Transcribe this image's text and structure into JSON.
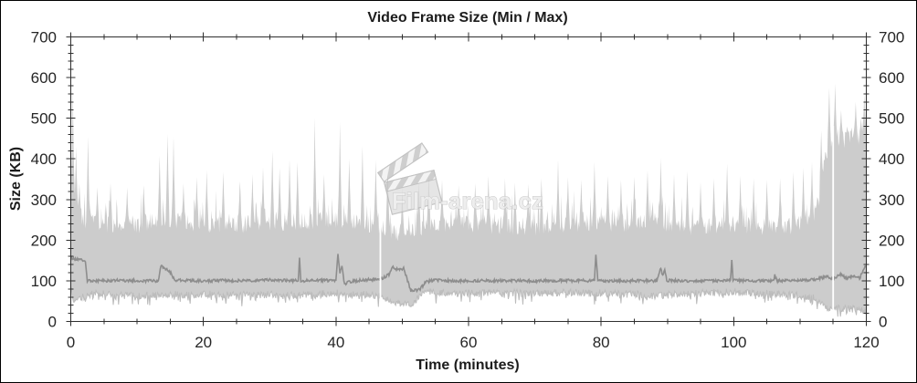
{
  "frame": {
    "background_color": "#ffffff",
    "border_color": "#000000"
  },
  "watermark": {
    "text": "Film-arena.cz",
    "icon": "clapperboard-icon",
    "color": "#c9c9c9"
  },
  "chart_data": {
    "type": "area",
    "title": "Video Frame Size (Min / Max)",
    "xlabel": "Time (minutes)",
    "ylabel": "Size (KB)",
    "xlim": [
      0,
      120
    ],
    "ylim": [
      0,
      700
    ],
    "x_major_ticks": [
      0,
      20,
      40,
      60,
      80,
      100,
      120
    ],
    "x_minor_step": 5,
    "y_major_ticks": [
      0,
      100,
      200,
      300,
      400,
      500,
      600,
      700
    ],
    "y_minor_step": 20,
    "grid": false,
    "legend_position": "none",
    "axis_color": "#2f2f2f",
    "text_color": "#1c1c1c",
    "band_color": "#cccccc",
    "min_edge_color": "#bcbcbc",
    "avg_color": "#8d8d8d",
    "sample_step": 0.1,
    "noise": {
      "seed": 20,
      "max_amp": 22,
      "max_spike_prob": 0.16,
      "max_spike_extra": 70,
      "min_amp": 9,
      "min_dip_prob": 0.12,
      "min_dip_extra": 22,
      "avg_amp": 3.5
    },
    "drops": [
      46.7,
      115.0
    ],
    "series": [
      {
        "name": "max",
        "role": "band-top",
        "keyframes": [
          [
            0,
            310
          ],
          [
            1,
            265
          ],
          [
            2,
            248
          ],
          [
            5,
            240
          ],
          [
            10,
            238
          ],
          [
            14,
            252
          ],
          [
            16,
            248
          ],
          [
            20,
            240
          ],
          [
            25,
            238
          ],
          [
            28,
            242
          ],
          [
            30,
            246
          ],
          [
            33,
            244
          ],
          [
            35,
            246
          ],
          [
            37,
            250
          ],
          [
            40,
            252
          ],
          [
            43,
            246
          ],
          [
            45,
            240
          ],
          [
            47,
            234
          ],
          [
            49,
            220
          ],
          [
            50,
            212
          ],
          [
            51,
            220
          ],
          [
            52,
            232
          ],
          [
            55,
            236
          ],
          [
            58,
            240
          ],
          [
            60,
            240
          ],
          [
            63,
            236
          ],
          [
            65,
            234
          ],
          [
            68,
            232
          ],
          [
            70,
            232
          ],
          [
            73,
            236
          ],
          [
            75,
            238
          ],
          [
            78,
            244
          ],
          [
            80,
            246
          ],
          [
            83,
            240
          ],
          [
            85,
            240
          ],
          [
            87,
            248
          ],
          [
            89,
            244
          ],
          [
            91,
            238
          ],
          [
            93,
            234
          ],
          [
            95,
            230
          ],
          [
            97,
            234
          ],
          [
            99,
            240
          ],
          [
            101,
            238
          ],
          [
            103,
            234
          ],
          [
            105,
            234
          ],
          [
            107,
            232
          ],
          [
            109,
            236
          ],
          [
            111,
            244
          ],
          [
            112,
            258
          ],
          [
            113,
            310
          ],
          [
            113.6,
            380
          ],
          [
            114.2,
            425
          ],
          [
            115,
            448
          ],
          [
            116,
            455
          ],
          [
            117,
            445
          ],
          [
            118,
            462
          ],
          [
            119,
            452
          ],
          [
            120,
            478
          ]
        ],
        "spikes": [
          [
            0.35,
            578
          ],
          [
            0.75,
            430
          ],
          [
            1.3,
            340
          ],
          [
            2.6,
            455
          ],
          [
            4,
            330
          ],
          [
            6,
            340
          ],
          [
            8.5,
            330
          ],
          [
            11,
            335
          ],
          [
            13.4,
            408
          ],
          [
            14.6,
            462
          ],
          [
            15.5,
            455
          ],
          [
            17,
            340
          ],
          [
            19,
            355
          ],
          [
            20.5,
            372
          ],
          [
            23,
            368
          ],
          [
            25.5,
            345
          ],
          [
            27.4,
            362
          ],
          [
            29,
            380
          ],
          [
            30.4,
            420
          ],
          [
            31.5,
            378
          ],
          [
            33,
            398
          ],
          [
            34.2,
            392
          ],
          [
            36.8,
            502
          ],
          [
            38.2,
            362
          ],
          [
            40.6,
            490
          ],
          [
            42,
            400
          ],
          [
            44,
            432
          ],
          [
            46,
            398
          ],
          [
            47.8,
            388
          ],
          [
            50,
            330
          ],
          [
            52.5,
            345
          ],
          [
            54,
            368
          ],
          [
            56,
            348
          ],
          [
            58.5,
            335
          ],
          [
            61,
            340
          ],
          [
            63,
            358
          ],
          [
            65.5,
            352
          ],
          [
            67,
            342
          ],
          [
            69,
            338
          ],
          [
            71,
            352
          ],
          [
            73.5,
            398
          ],
          [
            75,
            355
          ],
          [
            77,
            348
          ],
          [
            79,
            392
          ],
          [
            81,
            358
          ],
          [
            83,
            348
          ],
          [
            85,
            356
          ],
          [
            87,
            372
          ],
          [
            89,
            402
          ],
          [
            91,
            362
          ],
          [
            93,
            370
          ],
          [
            95,
            342
          ],
          [
            97,
            352
          ],
          [
            99,
            388
          ],
          [
            101,
            358
          ],
          [
            103,
            352
          ],
          [
            105,
            348
          ],
          [
            107,
            352
          ],
          [
            109,
            368
          ],
          [
            110.5,
            378
          ],
          [
            111.8,
            392
          ],
          [
            113.2,
            470
          ],
          [
            114.4,
            575
          ],
          [
            115.3,
            585
          ],
          [
            116.2,
            520
          ],
          [
            117.1,
            480
          ],
          [
            118.4,
            540
          ],
          [
            119.2,
            500
          ],
          [
            119.7,
            560
          ]
        ]
      },
      {
        "name": "min",
        "role": "band-bottom",
        "keyframes": [
          [
            0,
            85
          ],
          [
            0.4,
            50
          ],
          [
            1.5,
            58
          ],
          [
            3,
            66
          ],
          [
            5,
            70
          ],
          [
            8,
            64
          ],
          [
            10,
            63
          ],
          [
            13,
            66
          ],
          [
            15,
            68
          ],
          [
            18,
            64
          ],
          [
            20,
            68
          ],
          [
            23,
            64
          ],
          [
            25,
            66
          ],
          [
            28,
            64
          ],
          [
            30,
            67
          ],
          [
            33,
            64
          ],
          [
            35,
            66
          ],
          [
            38,
            68
          ],
          [
            40,
            70
          ],
          [
            43,
            66
          ],
          [
            45,
            66
          ],
          [
            47,
            60
          ],
          [
            48.5,
            50
          ],
          [
            50,
            42
          ],
          [
            51,
            40
          ],
          [
            52,
            52
          ],
          [
            53,
            70
          ],
          [
            55,
            72
          ],
          [
            58,
            70
          ],
          [
            60,
            70
          ],
          [
            63,
            71
          ],
          [
            65,
            72
          ],
          [
            68,
            70
          ],
          [
            70,
            70
          ],
          [
            73,
            71
          ],
          [
            75,
            72
          ],
          [
            78,
            70
          ],
          [
            80,
            70
          ],
          [
            83,
            68
          ],
          [
            85,
            68
          ],
          [
            87,
            62
          ],
          [
            89,
            64
          ],
          [
            91,
            66
          ],
          [
            93,
            68
          ],
          [
            95,
            70
          ],
          [
            98,
            72
          ],
          [
            100,
            72
          ],
          [
            103,
            70
          ],
          [
            105,
            70
          ],
          [
            108,
            66
          ],
          [
            110,
            64
          ],
          [
            112,
            58
          ],
          [
            113,
            48
          ],
          [
            114,
            36
          ],
          [
            115,
            30
          ],
          [
            116,
            34
          ],
          [
            117,
            30
          ],
          [
            118,
            34
          ],
          [
            119,
            28
          ],
          [
            120,
            24
          ]
        ]
      },
      {
        "name": "average",
        "role": "line",
        "keyframes": [
          [
            0,
            155
          ],
          [
            2.2,
            150
          ],
          [
            2.5,
            100
          ],
          [
            5,
            100
          ],
          [
            8,
            101
          ],
          [
            12,
            100
          ],
          [
            13.2,
            100
          ],
          [
            13.6,
            138
          ],
          [
            14.4,
            128
          ],
          [
            15.2,
            118
          ],
          [
            15.6,
            102
          ],
          [
            18,
            100
          ],
          [
            20,
            100
          ],
          [
            23,
            101
          ],
          [
            26,
            100
          ],
          [
            30,
            102
          ],
          [
            34.3,
            100
          ],
          [
            34.5,
            155
          ],
          [
            34.7,
            100
          ],
          [
            38,
            101
          ],
          [
            40,
            101
          ],
          [
            40.3,
            167
          ],
          [
            40.6,
            120
          ],
          [
            40.9,
            135
          ],
          [
            41.3,
            92
          ],
          [
            42,
            98
          ],
          [
            44,
            102
          ],
          [
            46,
            103
          ],
          [
            47,
            106
          ],
          [
            48,
            116
          ],
          [
            48.6,
            133
          ],
          [
            49.4,
            127
          ],
          [
            50.2,
            131
          ],
          [
            50.8,
            100
          ],
          [
            51.3,
            76
          ],
          [
            52.6,
            78
          ],
          [
            53.6,
            98
          ],
          [
            55,
            102
          ],
          [
            58,
            100
          ],
          [
            62,
            100
          ],
          [
            66,
            100
          ],
          [
            70,
            100
          ],
          [
            74,
            101
          ],
          [
            78,
            100
          ],
          [
            79,
            100
          ],
          [
            79.2,
            165
          ],
          [
            79.5,
            100
          ],
          [
            83,
            100
          ],
          [
            86,
            100
          ],
          [
            88.4,
            100
          ],
          [
            88.7,
            118
          ],
          [
            89,
            133
          ],
          [
            89.3,
            112
          ],
          [
            89.6,
            128
          ],
          [
            89.9,
            101
          ],
          [
            93,
            100
          ],
          [
            96,
            100
          ],
          [
            99.5,
            100
          ],
          [
            99.7,
            150
          ],
          [
            99.9,
            101
          ],
          [
            103,
            100
          ],
          [
            106,
            100
          ],
          [
            106.2,
            114
          ],
          [
            106.5,
            100
          ],
          [
            109,
            100
          ],
          [
            112,
            103
          ],
          [
            113,
            106
          ],
          [
            114,
            111
          ],
          [
            115,
            104
          ],
          [
            116,
            116
          ],
          [
            117,
            106
          ],
          [
            118,
            112
          ],
          [
            119,
            106
          ],
          [
            119.6,
            130
          ],
          [
            120,
            136
          ]
        ]
      }
    ]
  }
}
